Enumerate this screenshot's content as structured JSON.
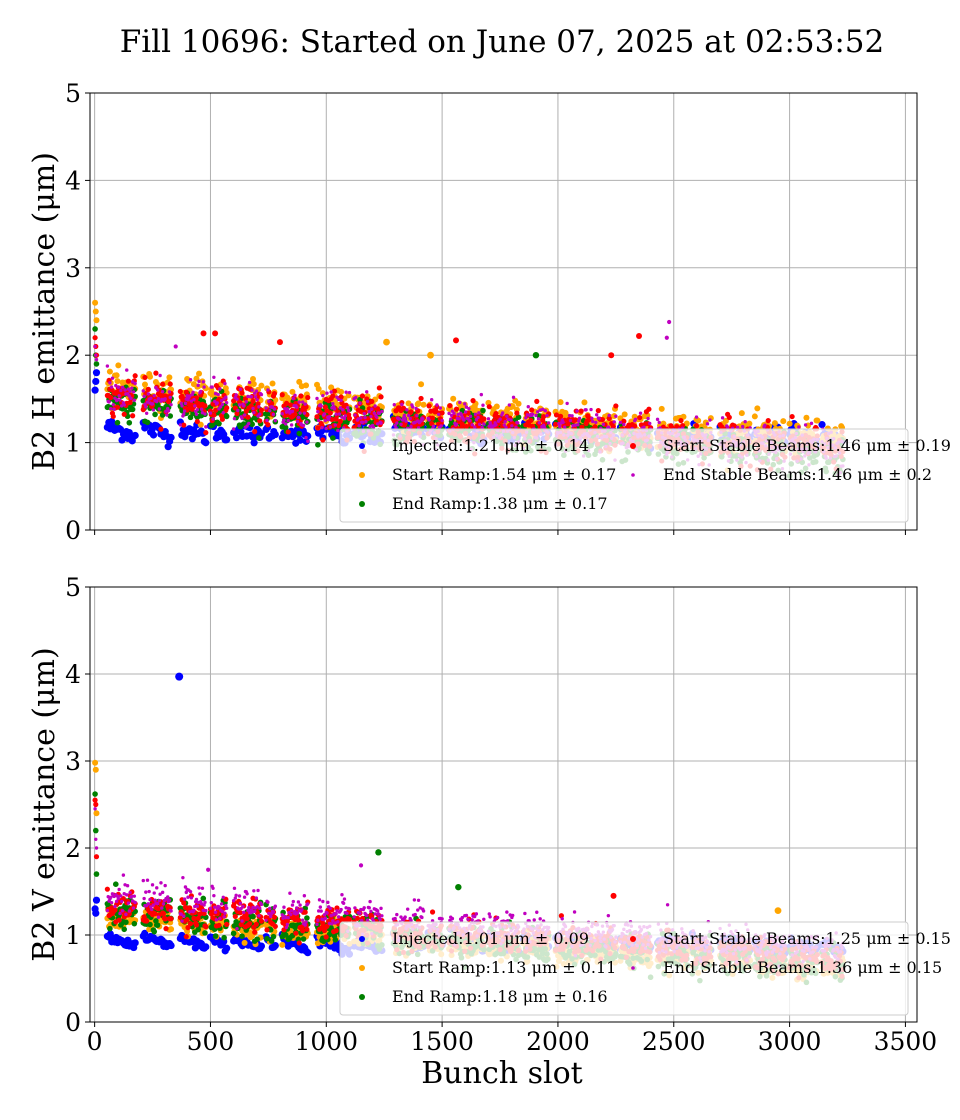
{
  "figure": {
    "suptitle": "Fill 10696: Started on June 07, 2025 at 02:53:52",
    "xlabel": "Bunch slot"
  },
  "colors": {
    "Injected": "#0000ff",
    "Start Ramp": "#ffa500",
    "End Ramp": "#008000",
    "Start Stable Beams": "#ff0000",
    "End Stable Beams": "#c000c0"
  },
  "chart_data": [
    {
      "type": "scatter",
      "ylabel": "B2 H emittance (μm)",
      "xlim": [
        -20,
        3550
      ],
      "ylim": [
        0,
        5
      ],
      "xticks": [
        0,
        500,
        1000,
        1500,
        2000,
        2500,
        3000,
        3500
      ],
      "yticks": [
        0,
        1,
        2,
        3,
        4,
        5
      ],
      "show_xtick_labels": false,
      "grid": true,
      "legend_position": "lower-right",
      "legend": [
        "Injected:1.21 μm ± 0.14",
        "Start Stable Beams:1.46 μm ± 0.19",
        "Start Ramp:1.54 μm ± 0.17",
        "End Stable Beams:1.46 μm ± 0.2",
        "End Ramp:1.38 μm ± 0.17"
      ],
      "series": [
        {
          "name": "Injected",
          "mean": 1.21,
          "std": 0.14,
          "x_range": [
            0,
            3230
          ],
          "first_bunch_values": [
            1.6,
            1.7,
            1.8
          ],
          "outliers": []
        },
        {
          "name": "Start Ramp",
          "mean": 1.54,
          "std": 0.17,
          "x_range": [
            0,
            3230
          ],
          "first_bunch_values": [
            2.6,
            2.5,
            2.4
          ],
          "outliers": [
            [
              1260,
              2.15
            ],
            [
              1450,
              2.0
            ]
          ]
        },
        {
          "name": "End Ramp",
          "mean": 1.38,
          "std": 0.17,
          "x_range": [
            0,
            3230
          ],
          "first_bunch_values": [
            2.3,
            2.0,
            1.9
          ],
          "outliers": [
            [
              1905,
              2.0
            ]
          ]
        },
        {
          "name": "Start Stable Beams",
          "mean": 1.46,
          "std": 0.19,
          "x_range": [
            0,
            3230
          ],
          "first_bunch_values": [
            2.2,
            2.1,
            2.0
          ],
          "outliers": [
            [
              470,
              2.25
            ],
            [
              520,
              2.25
            ],
            [
              800,
              2.15
            ],
            [
              1560,
              2.17
            ],
            [
              2230,
              2.0
            ],
            [
              2350,
              2.22
            ]
          ]
        },
        {
          "name": "End Stable Beams",
          "mean": 1.46,
          "std": 0.2,
          "x_range": [
            0,
            3230
          ],
          "first_bunch_values": [
            2.1,
            2.0,
            1.95
          ],
          "outliers": [
            [
              2480,
              2.38
            ],
            [
              2470,
              2.2
            ],
            [
              350,
              2.1
            ]
          ]
        }
      ]
    },
    {
      "type": "scatter",
      "ylabel": "B2 V emittance (μm)",
      "xlim": [
        -20,
        3550
      ],
      "ylim": [
        0,
        5
      ],
      "xticks": [
        0,
        500,
        1000,
        1500,
        2000,
        2500,
        3000,
        3500
      ],
      "yticks": [
        0,
        1,
        2,
        3,
        4,
        5
      ],
      "show_xtick_labels": true,
      "grid": true,
      "legend_position": "lower-right",
      "legend": [
        "Injected:1.01 μm ± 0.09",
        "Start Stable Beams:1.25 μm ± 0.15",
        "Start Ramp:1.13 μm ± 0.11",
        "End Stable Beams:1.36 μm ± 0.15",
        "End Ramp:1.18 μm ± 0.16"
      ],
      "series": [
        {
          "name": "Injected",
          "mean": 1.01,
          "std": 0.09,
          "x_range": [
            0,
            3230
          ],
          "first_bunch_values": [
            1.3,
            1.25,
            1.4
          ],
          "outliers": [
            [
              365,
              3.97
            ]
          ]
        },
        {
          "name": "Start Ramp",
          "mean": 1.13,
          "std": 0.11,
          "x_range": [
            0,
            3230
          ],
          "first_bunch_values": [
            2.98,
            2.9,
            2.4
          ],
          "outliers": [
            [
              2950,
              1.28
            ]
          ]
        },
        {
          "name": "End Ramp",
          "mean": 1.18,
          "std": 0.16,
          "x_range": [
            0,
            3230
          ],
          "first_bunch_values": [
            2.62,
            2.2,
            1.7
          ],
          "outliers": [
            [
              1225,
              1.95
            ],
            [
              1570,
              1.55
            ]
          ]
        },
        {
          "name": "Start Stable Beams",
          "mean": 1.25,
          "std": 0.15,
          "x_range": [
            0,
            3230
          ],
          "first_bunch_values": [
            2.55,
            2.5,
            1.9
          ],
          "outliers": [
            [
              2240,
              1.45
            ]
          ]
        },
        {
          "name": "End Stable Beams",
          "mean": 1.36,
          "std": 0.15,
          "x_range": [
            0,
            3230
          ],
          "first_bunch_values": [
            2.45,
            2.1,
            2.0
          ],
          "outliers": [
            [
              490,
              1.75
            ],
            [
              1150,
              1.8
            ]
          ]
        }
      ]
    }
  ]
}
